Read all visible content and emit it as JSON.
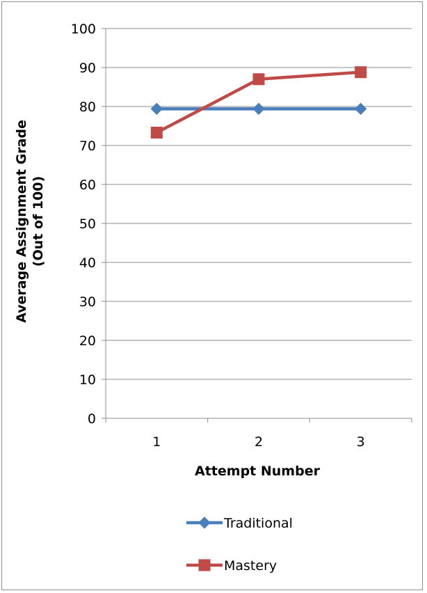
{
  "chart_data": {
    "type": "line",
    "x": [
      1,
      2,
      3
    ],
    "categories": [
      "1",
      "2",
      "3"
    ],
    "series": [
      {
        "name": "Traditional",
        "values": [
          79.4,
          79.4,
          79.4
        ],
        "color": "#4a7ebb",
        "marker": "diamond"
      },
      {
        "name": "Mastery",
        "values": [
          73.3,
          87.0,
          88.8
        ],
        "color": "#be4b48",
        "marker": "square"
      }
    ],
    "xlabel": "Attempt Number",
    "ylabel_line1": "Average Assignment Grade",
    "ylabel_line2": "(Out of 100)",
    "ylim": [
      0,
      100
    ],
    "yticks": [
      0,
      10,
      20,
      30,
      40,
      50,
      60,
      70,
      80,
      90,
      100
    ],
    "grid": true,
    "legend_position": "bottom"
  }
}
